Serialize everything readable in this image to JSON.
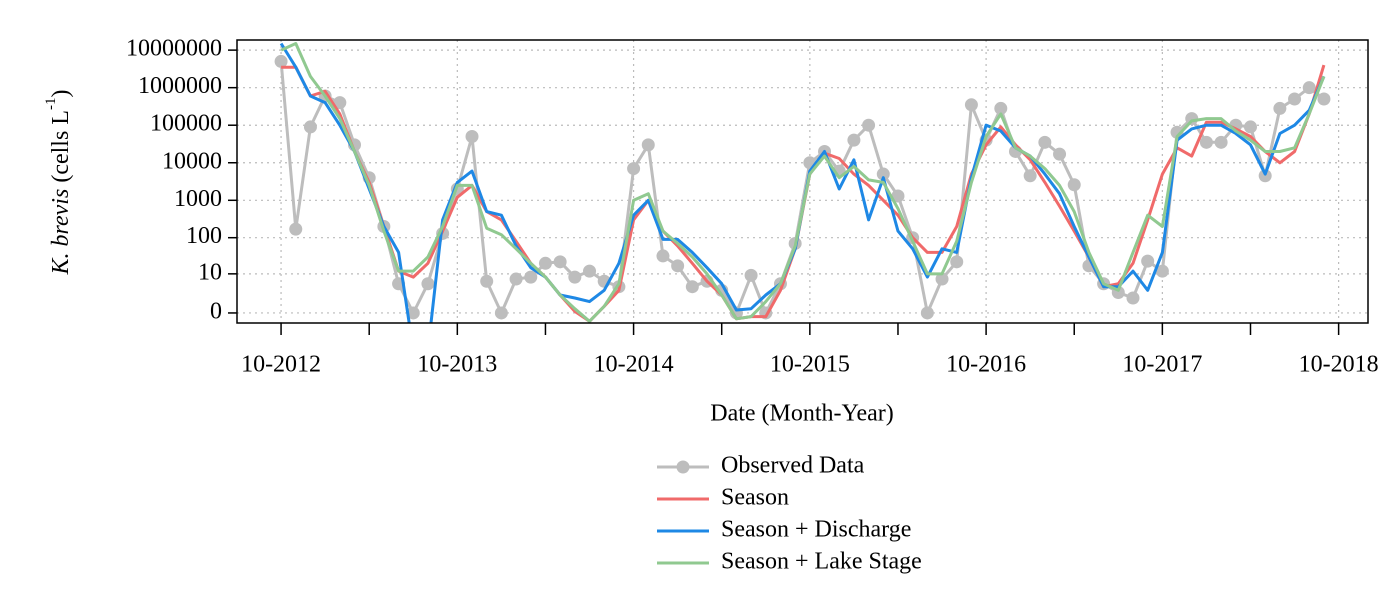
{
  "chart_data": {
    "type": "line",
    "ylabel": {
      "species": "K. brevis",
      "unit": "(cells L",
      "exponent": "-1",
      "close": ")"
    },
    "xlabel": "Date (Month-Year)",
    "yscale": "log10(x+1)",
    "grid": true,
    "legend": "bottom",
    "x": [
      "10-2012",
      "11-2012",
      "12-2012",
      "01-2013",
      "02-2013",
      "03-2013",
      "04-2013",
      "05-2013",
      "06-2013",
      "07-2013",
      "08-2013",
      "09-2013",
      "10-2013",
      "11-2013",
      "12-2013",
      "01-2014",
      "02-2014",
      "03-2014",
      "04-2014",
      "05-2014",
      "06-2014",
      "07-2014",
      "08-2014",
      "09-2014",
      "10-2014",
      "11-2014",
      "12-2014",
      "01-2015",
      "02-2015",
      "03-2015",
      "04-2015",
      "05-2015",
      "06-2015",
      "07-2015",
      "08-2015",
      "09-2015",
      "10-2015",
      "11-2015",
      "12-2015",
      "01-2016",
      "02-2016",
      "03-2016",
      "04-2016",
      "05-2016",
      "06-2016",
      "07-2016",
      "08-2016",
      "09-2016",
      "10-2016",
      "11-2016",
      "12-2016",
      "01-2017",
      "02-2017",
      "03-2017",
      "04-2017",
      "05-2017",
      "06-2017",
      "07-2017",
      "08-2017",
      "09-2017",
      "10-2017",
      "11-2017",
      "12-2017",
      "01-2018",
      "02-2018",
      "03-2018",
      "04-2018",
      "05-2018",
      "06-2018",
      "07-2018",
      "08-2018",
      "09-2018"
    ],
    "xlim": [
      "07-2012",
      "12-2018"
    ],
    "xticks": [
      "10-2012",
      "10-2013",
      "10-2014",
      "10-2015",
      "10-2016",
      "10-2017",
      "10-2018"
    ],
    "xminorticks": [
      "04-2013",
      "04-2014",
      "04-2015",
      "04-2016",
      "04-2017",
      "04-2018"
    ],
    "ylim": [
      -0.46,
      18600000
    ],
    "yticks": [
      0,
      10,
      100,
      1000,
      10000,
      100000,
      1000000,
      10000000
    ],
    "series": [
      {
        "name": "Observed Data",
        "color": "#bdbdbd",
        "marker": "circle",
        "values": [
          5000000,
          170,
          90000,
          600000,
          400000,
          30000,
          4000,
          200,
          5,
          0,
          5,
          130,
          2000,
          50000,
          6,
          0,
          7,
          8,
          20,
          22,
          8,
          12,
          6,
          4,
          7000,
          30000,
          32,
          17,
          4,
          6,
          3,
          0,
          9,
          0,
          5,
          70,
          10000,
          20000,
          6000,
          40000,
          100000,
          5000,
          1300,
          100,
          0,
          7,
          22,
          350000,
          40000,
          280000,
          20000,
          4500,
          35000,
          17000,
          2600,
          17,
          5,
          2.5,
          1.5,
          23,
          12,
          65000,
          150000,
          35000,
          35000,
          100000,
          90000,
          4500,
          280000,
          500000,
          1000000,
          500000
        ]
      },
      {
        "name": "Season",
        "color": "#f06a6a",
        "values": [
          3500000,
          3500000,
          600000,
          800000,
          200000,
          20000,
          3000,
          200,
          12,
          8,
          20,
          150,
          1200,
          2500,
          500,
          300,
          80,
          20,
          8,
          2,
          0.1,
          -0.4,
          0.5,
          3,
          300,
          1000,
          150,
          60,
          20,
          6,
          2,
          -0.3,
          -0.2,
          -0.2,
          3,
          50,
          5000,
          18000,
          13000,
          5000,
          2500,
          1000,
          400,
          100,
          40,
          40,
          200,
          5000,
          30000,
          90000,
          30000,
          12000,
          3000,
          700,
          150,
          30,
          4,
          5,
          20,
          300,
          5000,
          25000,
          15000,
          120000,
          120000,
          80000,
          50000,
          20000,
          10000,
          20000,
          200000,
          4000000
        ]
      },
      {
        "name": "Season + Discharge",
        "color": "#1e88e5",
        "values": [
          15000000,
          3500000,
          600000,
          400000,
          100000,
          20000,
          2000,
          200,
          40,
          -0.9,
          -0.9,
          300,
          3000,
          6000,
          500,
          400,
          60,
          15,
          8,
          2,
          1.5,
          1,
          3,
          20,
          400,
          1000,
          90,
          90,
          40,
          15,
          5,
          0.2,
          0.3,
          2,
          5,
          50,
          6000,
          20000,
          2000,
          12000,
          300,
          4000,
          150,
          50,
          8,
          50,
          40,
          4000,
          100000,
          70000,
          25000,
          15000,
          5000,
          1500,
          200,
          30,
          4,
          4,
          12,
          3,
          40,
          40000,
          80000,
          100000,
          100000,
          60000,
          30000,
          5000,
          60000,
          100000,
          250000,
          2000000
        ]
      },
      {
        "name": "Season + Lake Stage",
        "color": "#90c990",
        "values": [
          10000000,
          15000000,
          2000000,
          600000,
          150000,
          20000,
          2500,
          150,
          12,
          12,
          30,
          200,
          2500,
          2500,
          180,
          120,
          50,
          20,
          8,
          2,
          0.3,
          -0.4,
          0.5,
          5,
          1000,
          1500,
          150,
          70,
          30,
          10,
          2,
          -0.3,
          -0.2,
          1,
          5,
          60,
          5000,
          15000,
          4000,
          8000,
          3500,
          3000,
          600,
          80,
          10,
          10,
          80,
          3000,
          50000,
          200000,
          25000,
          15000,
          7000,
          2500,
          500,
          40,
          5,
          3,
          40,
          400,
          200,
          50000,
          130000,
          150000,
          150000,
          70000,
          40000,
          20000,
          20000,
          25000,
          200000,
          2000000
        ]
      }
    ]
  }
}
